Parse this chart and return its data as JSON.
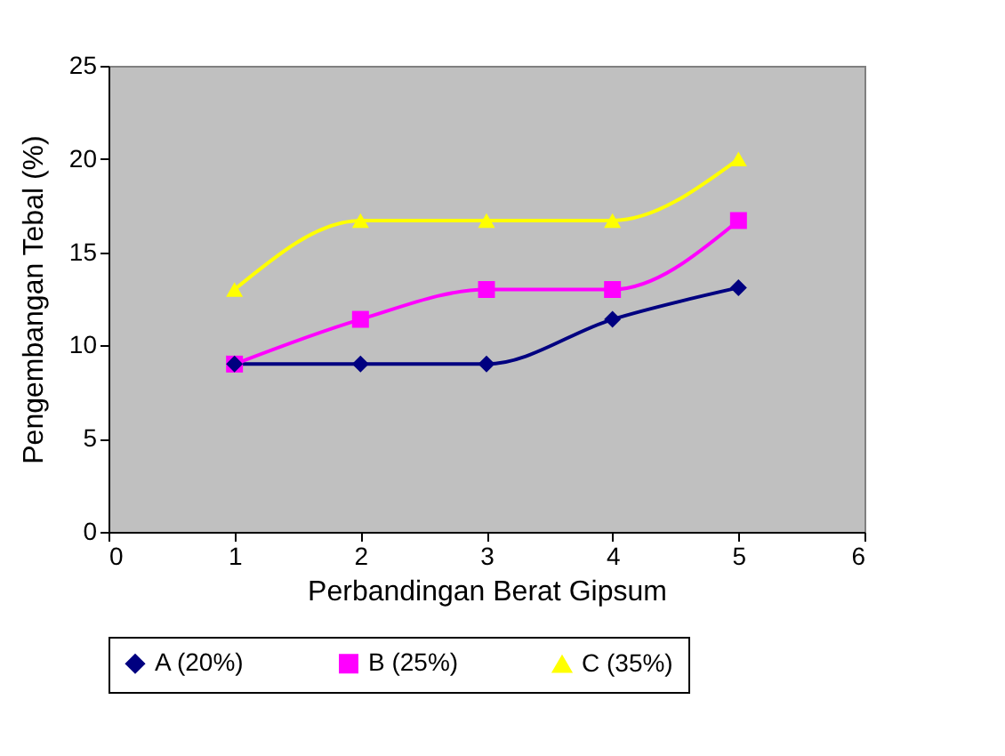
{
  "chart_data": {
    "type": "line",
    "xlabel": "Perbandingan Berat Gipsum",
    "ylabel": "Pengembangan Tebal (%)",
    "x": [
      1,
      2,
      3,
      4,
      5
    ],
    "xlim": [
      0,
      6
    ],
    "xticks": [
      0,
      1,
      2,
      3,
      4,
      5,
      6
    ],
    "ylim": [
      0,
      25
    ],
    "yticks": [
      0,
      5,
      10,
      15,
      20,
      25
    ],
    "grid": false,
    "legend": "bottom",
    "series": [
      {
        "name": "A (20%)",
        "color": "#000080",
        "marker": "diamond",
        "values": [
          9,
          9,
          9,
          11.4,
          13.1
        ]
      },
      {
        "name": "B (25%)",
        "color": "#ff00ff",
        "marker": "square",
        "values": [
          9,
          11.4,
          13,
          13,
          16.7
        ]
      },
      {
        "name": "C (35%)",
        "color": "#ffff00",
        "marker": "triangle",
        "values": [
          13,
          16.7,
          16.7,
          16.7,
          20
        ]
      }
    ]
  }
}
